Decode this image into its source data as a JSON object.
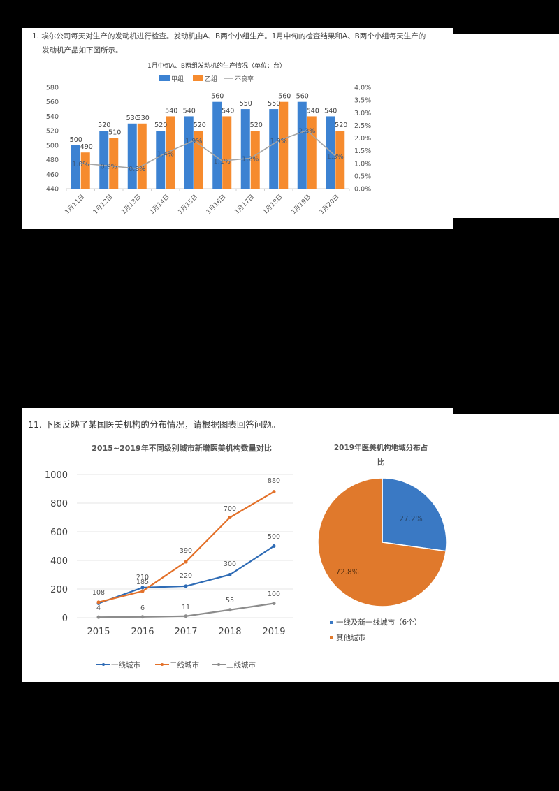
{
  "question1": {
    "line1": "1.  埃尔公司每天对生产的发动机进行检查。发动机由A、B两个小组生产。1月中旬的检查结果和A、B两个小组每天生产的",
    "line2": "发动机产品如下图所示。"
  },
  "question11": {
    "text": "11. 下图反映了某国医美机构的分布情况，请根据图表回答问题。"
  },
  "colors": {
    "blue": "#3C82D2",
    "orange": "#F68B2E",
    "gray": "#A5A5A5",
    "line_blue": "#2E6BB5",
    "line_orange": "#E3712A",
    "line_gray": "#8C8C8C",
    "pie_blue": "#3A79C4",
    "pie_orange": "#E0792C"
  },
  "chart_data": [
    {
      "type": "bar",
      "title": "1月中旬A、B两组发动机的生产情况（单位：台）",
      "categories": [
        "1月11日",
        "1月12日",
        "1月13日",
        "1月14日",
        "1月15日",
        "1月16日",
        "1月17日",
        "1月18日",
        "1月19日",
        "1月20日"
      ],
      "series": [
        {
          "name": "甲组",
          "type": "bar",
          "axis": "left",
          "values": [
            500,
            520,
            530,
            520,
            540,
            560,
            550,
            550,
            560,
            540
          ]
        },
        {
          "name": "乙组",
          "type": "bar",
          "axis": "left",
          "values": [
            490,
            510,
            530,
            540,
            520,
            540,
            520,
            560,
            540,
            520
          ]
        },
        {
          "name": "不良率",
          "type": "line",
          "axis": "right",
          "values": [
            1.0,
            0.9,
            0.8,
            1.4,
            1.9,
            1.1,
            1.2,
            1.9,
            2.3,
            1.3
          ],
          "labels": [
            "1.0%",
            "0.9%",
            "0.8%",
            "1.4%",
            "1.9%",
            "1.1%",
            "1.2%",
            "1.9%",
            "2.3%",
            "1.3%"
          ]
        }
      ],
      "ylim": [
        440,
        580
      ],
      "yticks": [
        440,
        460,
        480,
        500,
        520,
        540,
        560,
        580
      ],
      "y2lim": [
        0,
        4.0
      ],
      "y2ticks": [
        "0.0%",
        "0.5%",
        "1.0%",
        "1.5%",
        "2.0%",
        "2.5%",
        "3.0%",
        "3.5%",
        "4.0%"
      ],
      "legend": [
        "甲组",
        "乙组",
        "不良率"
      ],
      "legend_position": "top",
      "grid": false
    },
    {
      "type": "line",
      "title": "2015~2019年不同级别城市新增医美机构数量对比",
      "x": [
        "2015",
        "2016",
        "2017",
        "2018",
        "2019"
      ],
      "series": [
        {
          "name": "一线城市",
          "values": [
            100,
            210,
            220,
            300,
            500
          ]
        },
        {
          "name": "二线城市",
          "values": [
            108,
            185,
            390,
            700,
            880
          ]
        },
        {
          "name": "三线城市",
          "values": [
            4,
            6,
            11,
            55,
            100
          ]
        }
      ],
      "data_labels": [
        "108",
        "210",
        "185",
        "220",
        "390",
        "300",
        "700",
        "500",
        "880",
        "4",
        "6",
        "11",
        "55",
        "100"
      ],
      "ylim": [
        0,
        1000
      ],
      "yticks": [
        0,
        200,
        400,
        600,
        800,
        1000
      ],
      "legend": [
        "一线城市",
        "二线城市",
        "三线城市"
      ],
      "legend_position": "bottom",
      "grid": true
    },
    {
      "type": "pie",
      "title": "2019年医美机构地域分布占比",
      "title_line1": "2019年医美机构地域分布占",
      "title_line2": "比",
      "labels": [
        "一线及新一线城市（6个）",
        "其他城市"
      ],
      "values": [
        27.2,
        72.8
      ],
      "value_labels": [
        "27.2%",
        "72.8%"
      ],
      "legend_position": "bottom"
    }
  ]
}
